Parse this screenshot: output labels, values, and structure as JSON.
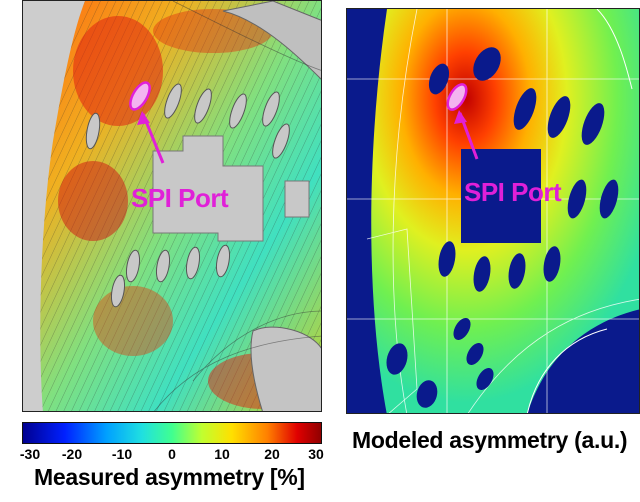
{
  "measured_panel": {
    "port_label": "SPI Port",
    "colorbar": {
      "ticks": [
        "-30",
        "-20",
        "-10",
        "0",
        "10",
        "20",
        "30"
      ],
      "min": -30,
      "max": 30
    },
    "caption": "Measured asymmetry [%]"
  },
  "modeled_panel": {
    "port_label": "SPI Port",
    "caption": "Modeled asymmetry (a.u.)"
  },
  "colors": {
    "port_marker": "#e020d8",
    "port_ellipse_fill": "#f3b4f0",
    "modeled_background": "#0a1a8c"
  }
}
